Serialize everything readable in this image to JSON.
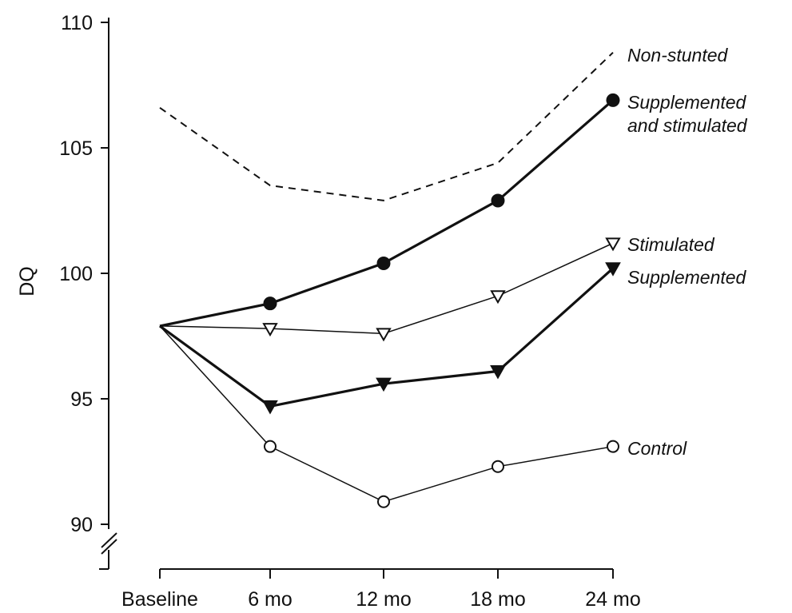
{
  "chart_data": {
    "type": "line",
    "categories": [
      "Baseline",
      "6 mo",
      "12 mo",
      "18 mo",
      "24 mo"
    ],
    "ylabel": "DQ",
    "xlabel": "",
    "ylim": [
      90,
      110
    ],
    "yticks": [
      90,
      95,
      100,
      105,
      110
    ],
    "y_axis_break": true,
    "legend": "labels at line ends (right)",
    "grid": false,
    "series": [
      {
        "name": "Non-stunted",
        "label_lines": [
          "Non-stunted"
        ],
        "values": [
          106.6,
          103.5,
          102.9,
          104.4,
          108.8
        ],
        "style": "dashed",
        "marker": "none",
        "weight": "thin"
      },
      {
        "name": "Supplemented and stimulated",
        "label_lines": [
          "Supplemented",
          "and stimulated"
        ],
        "values": [
          97.9,
          98.8,
          100.4,
          102.9,
          106.9
        ],
        "style": "solid",
        "marker": "filled-circle",
        "weight": "bold"
      },
      {
        "name": "Stimulated",
        "label_lines": [
          "Stimulated"
        ],
        "values": [
          97.9,
          97.8,
          97.6,
          99.1,
          101.2
        ],
        "style": "solid",
        "marker": "open-triangle-down",
        "weight": "thin"
      },
      {
        "name": "Supplemented",
        "label_lines": [
          "Supplemented"
        ],
        "values": [
          97.9,
          94.7,
          95.6,
          96.1,
          100.2
        ],
        "style": "solid",
        "marker": "filled-triangle-down",
        "weight": "bold"
      },
      {
        "name": "Control",
        "label_lines": [
          "Control"
        ],
        "values": [
          97.9,
          93.1,
          90.9,
          92.3,
          93.1
        ],
        "style": "solid",
        "marker": "open-circle",
        "weight": "thin"
      }
    ]
  }
}
